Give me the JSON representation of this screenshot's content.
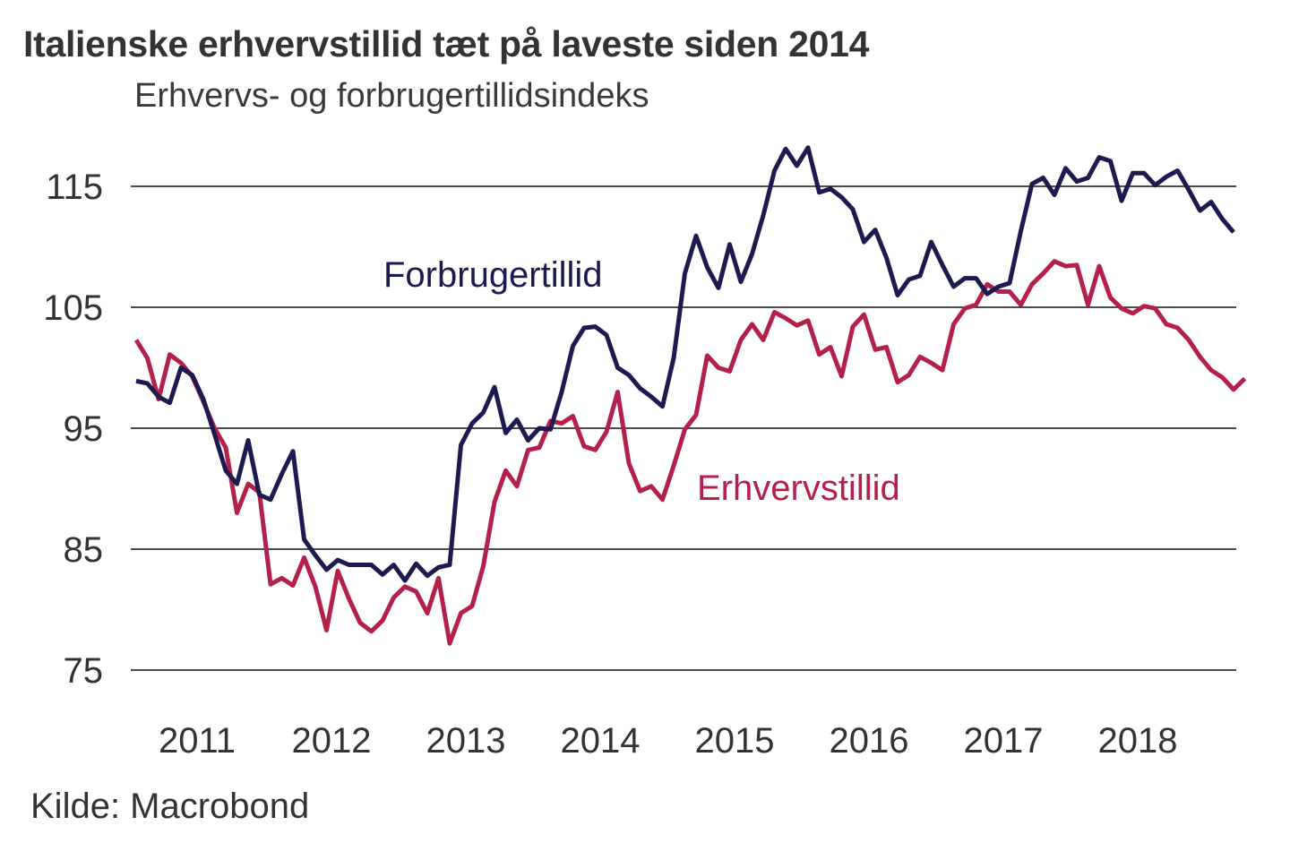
{
  "header": {
    "title": "Italienske erhvervstillid tæt på laveste siden 2014",
    "subtitle": "Erhvervs- og forbrugertillidsindeks"
  },
  "footer": {
    "source": "Kilde: Macrobond"
  },
  "chart_data": {
    "type": "line",
    "title": "Italienske erhvervstillid tæt på laveste siden 2014",
    "subtitle": "Erhvervs- og forbrugertillidsindeks",
    "xlabel": "",
    "ylabel": "",
    "source": "Kilde: Macrobond",
    "x_start": "2011-01",
    "x_frequency": "monthly",
    "x_tick_labels": [
      "2011",
      "2012",
      "2013",
      "2014",
      "2015",
      "2016",
      "2017",
      "2018"
    ],
    "y_ticks": [
      115,
      105,
      95,
      85,
      75
    ],
    "ylim": [
      75,
      120
    ],
    "grid": "horizontal",
    "legend": "inline labels",
    "series": [
      {
        "name": "Forbrugertillid",
        "label_position": "upper-left-center",
        "color": "#1c1a4e",
        "values": [
          98.9,
          98.7,
          97.6,
          97.1,
          100.0,
          99.4,
          97.4,
          94.5,
          91.5,
          90.4,
          94.0,
          89.5,
          89.1,
          91.2,
          93.1,
          85.8,
          84.5,
          83.3,
          84.1,
          83.7,
          83.7,
          83.7,
          82.9,
          83.7,
          82.4,
          83.8,
          82.8,
          83.5,
          83.7,
          93.6,
          95.4,
          96.3,
          98.4,
          94.6,
          95.7,
          94.0,
          95.0,
          94.9,
          98.0,
          101.8,
          103.3,
          103.4,
          102.7,
          100.0,
          99.4,
          98.3,
          97.6,
          96.8,
          100.8,
          107.8,
          110.9,
          108.3,
          106.6,
          110.2,
          107.1,
          109.4,
          112.6,
          116.3,
          118.1,
          116.7,
          118.2,
          114.5,
          114.8,
          114.1,
          113.1,
          110.4,
          111.4,
          109.1,
          106.0,
          107.3,
          107.6,
          110.4,
          108.5,
          106.7,
          107.4,
          107.4,
          106.1,
          106.7,
          107.0,
          111.3,
          115.2,
          115.7,
          114.3,
          116.5,
          115.4,
          115.7,
          117.4,
          117.1,
          113.8,
          116.1,
          116.1,
          115.1,
          115.8,
          116.3,
          114.7,
          113.0,
          113.7,
          112.3,
          111.2
        ]
      },
      {
        "name": "Erhvervstillid",
        "label_position": "center-right",
        "color": "#b5204a",
        "values": [
          102.3,
          100.8,
          97.4,
          101.1,
          100.4,
          99.3,
          97.2,
          95.0,
          93.4,
          88.0,
          90.4,
          89.7,
          82.1,
          82.6,
          82.0,
          84.3,
          81.9,
          78.3,
          83.2,
          80.9,
          78.9,
          78.2,
          79.1,
          81.0,
          81.9,
          81.5,
          79.7,
          82.6,
          77.2,
          79.7,
          80.3,
          83.6,
          88.9,
          91.5,
          90.2,
          93.2,
          93.4,
          95.6,
          95.4,
          96.0,
          93.5,
          93.2,
          94.7,
          98.0,
          92.1,
          89.8,
          90.2,
          89.1,
          91.9,
          94.9,
          96.1,
          101.0,
          100.0,
          99.7,
          102.3,
          103.6,
          102.3,
          104.6,
          104.1,
          103.5,
          103.9,
          101.1,
          101.7,
          99.3,
          103.4,
          104.4,
          101.5,
          101.7,
          98.8,
          99.4,
          100.9,
          100.4,
          99.8,
          103.6,
          104.9,
          105.2,
          106.9,
          106.3,
          106.3,
          105.2,
          106.9,
          107.8,
          108.8,
          108.4,
          108.5,
          105.2,
          108.4,
          105.8,
          104.9,
          104.5,
          105.1,
          104.9,
          103.6,
          103.3,
          102.3,
          100.9,
          99.8,
          99.2,
          98.2,
          99.1
        ]
      }
    ]
  }
}
